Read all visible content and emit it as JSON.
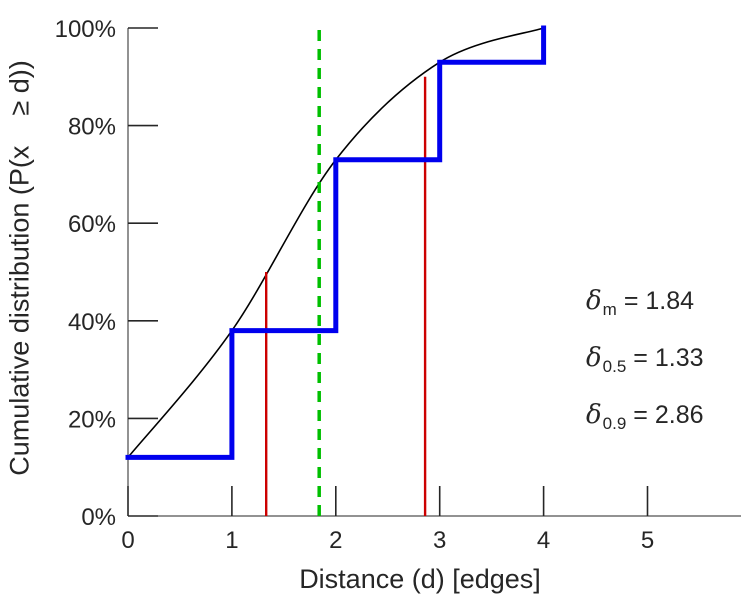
{
  "chart_data": {
    "type": "line",
    "title": "",
    "xlabel": "Distance (d) [edges]",
    "ylabel": "Cumulative distribution (P(x    ≥ d))",
    "xlim": [
      0,
      5.9
    ],
    "ylim": [
      0,
      100
    ],
    "x_ticks": [
      0,
      1,
      2,
      3,
      4,
      5
    ],
    "y_ticks": [
      0,
      20,
      40,
      60,
      80,
      100
    ],
    "y_tick_suffix": "%",
    "grid": false,
    "legend": "none",
    "series": [
      {
        "name": "interpolated-cdf-curve",
        "type": "smooth",
        "color": "#000000",
        "width": 1.6,
        "x": [
          0,
          1,
          2,
          3,
          4
        ],
        "values": [
          12,
          38,
          73,
          93,
          100
        ]
      },
      {
        "name": "empirical-cdf-steps",
        "type": "step",
        "color": "#0000ee",
        "width": 5,
        "x": [
          0,
          1,
          2,
          3,
          4
        ],
        "values": [
          12,
          38,
          73,
          93,
          100
        ]
      }
    ],
    "vlines": [
      {
        "name": "mean-distance-line",
        "x": 1.84,
        "y0": 0,
        "y1": 100,
        "color": "#00bf00",
        "dash": "11,8",
        "width": 3.5
      },
      {
        "name": "median-distance-line",
        "x": 1.33,
        "y0": 0,
        "y1": 50,
        "color": "#cc0000",
        "dash": "",
        "width": 2.4
      },
      {
        "name": "p90-distance-line",
        "x": 2.86,
        "y0": 0,
        "y1": 90,
        "color": "#cc0000",
        "dash": "",
        "width": 2.4
      }
    ],
    "annotations": [
      {
        "symbol": "δ",
        "subscript": "m",
        "value": "= 1.84"
      },
      {
        "symbol": "δ",
        "subscript": "0.5",
        "value": "= 1.33"
      },
      {
        "symbol": "δ",
        "subscript": "0.9",
        "value": "= 2.86"
      }
    ]
  }
}
